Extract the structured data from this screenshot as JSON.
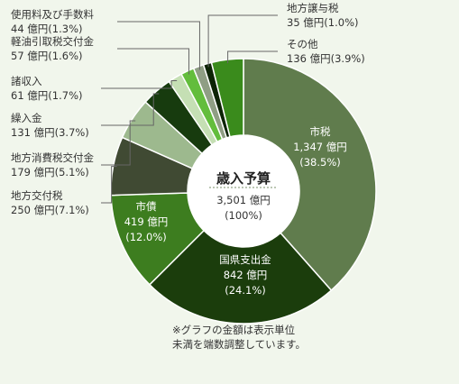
{
  "chart_data": {
    "type": "pie",
    "title": "歳入予算",
    "total_value": "3,501 億円",
    "total_percent": "(100%)",
    "slices": [
      {
        "name": "市税",
        "value": 1347,
        "value_label": "1,347 億円",
        "percent": 38.5,
        "percent_label": "(38.5%)",
        "color": "#607c4d"
      },
      {
        "name": "国県支出金",
        "value": 842,
        "value_label": "842 億円",
        "percent": 24.1,
        "percent_label": "(24.1%)",
        "color": "#1b3d0c"
      },
      {
        "name": "市債",
        "value": 419,
        "value_label": "419 億円",
        "percent": 12.0,
        "percent_label": "(12.0%)",
        "color": "#3d7d1f"
      },
      {
        "name": "地方交付税",
        "value": 250,
        "value_label": "250 億円",
        "percent": 7.1,
        "percent_label": "(7.1%)",
        "color": "#404a33"
      },
      {
        "name": "地方消費税交付金",
        "value": 179,
        "value_label": "179 億円",
        "percent": 5.1,
        "percent_label": "(5.1%)",
        "color": "#9db98e"
      },
      {
        "name": "繰入金",
        "value": 131,
        "value_label": "131 億円",
        "percent": 3.7,
        "percent_label": "(3.7%)",
        "color": "#173b0e"
      },
      {
        "name": "諸収入",
        "value": 61,
        "value_label": "61 億円",
        "percent": 1.7,
        "percent_label": "(1.7%)",
        "color": "#c5dfb4"
      },
      {
        "name": "軽油引取税交付金",
        "value": 57,
        "value_label": "57 億円",
        "percent": 1.6,
        "percent_label": "(1.6%)",
        "color": "#63bd3c"
      },
      {
        "name": "使用料及び手数料",
        "value": 44,
        "value_label": "44 億円",
        "percent": 1.3,
        "percent_label": "(1.3%)",
        "color": "#8f9e84"
      },
      {
        "name": "地方譲与税",
        "value": 35,
        "value_label": "35 億円",
        "percent": 1.0,
        "percent_label": "(1.0%)",
        "color": "#0d2406"
      },
      {
        "name": "その他",
        "value": 136,
        "value_label": "136 億円",
        "percent": 3.9,
        "percent_label": "(3.9%)",
        "color": "#3a8b1c"
      }
    ]
  },
  "note": {
    "line1": "※グラフの金額は表示単位",
    "line2": "未満を端数調整しています。"
  }
}
